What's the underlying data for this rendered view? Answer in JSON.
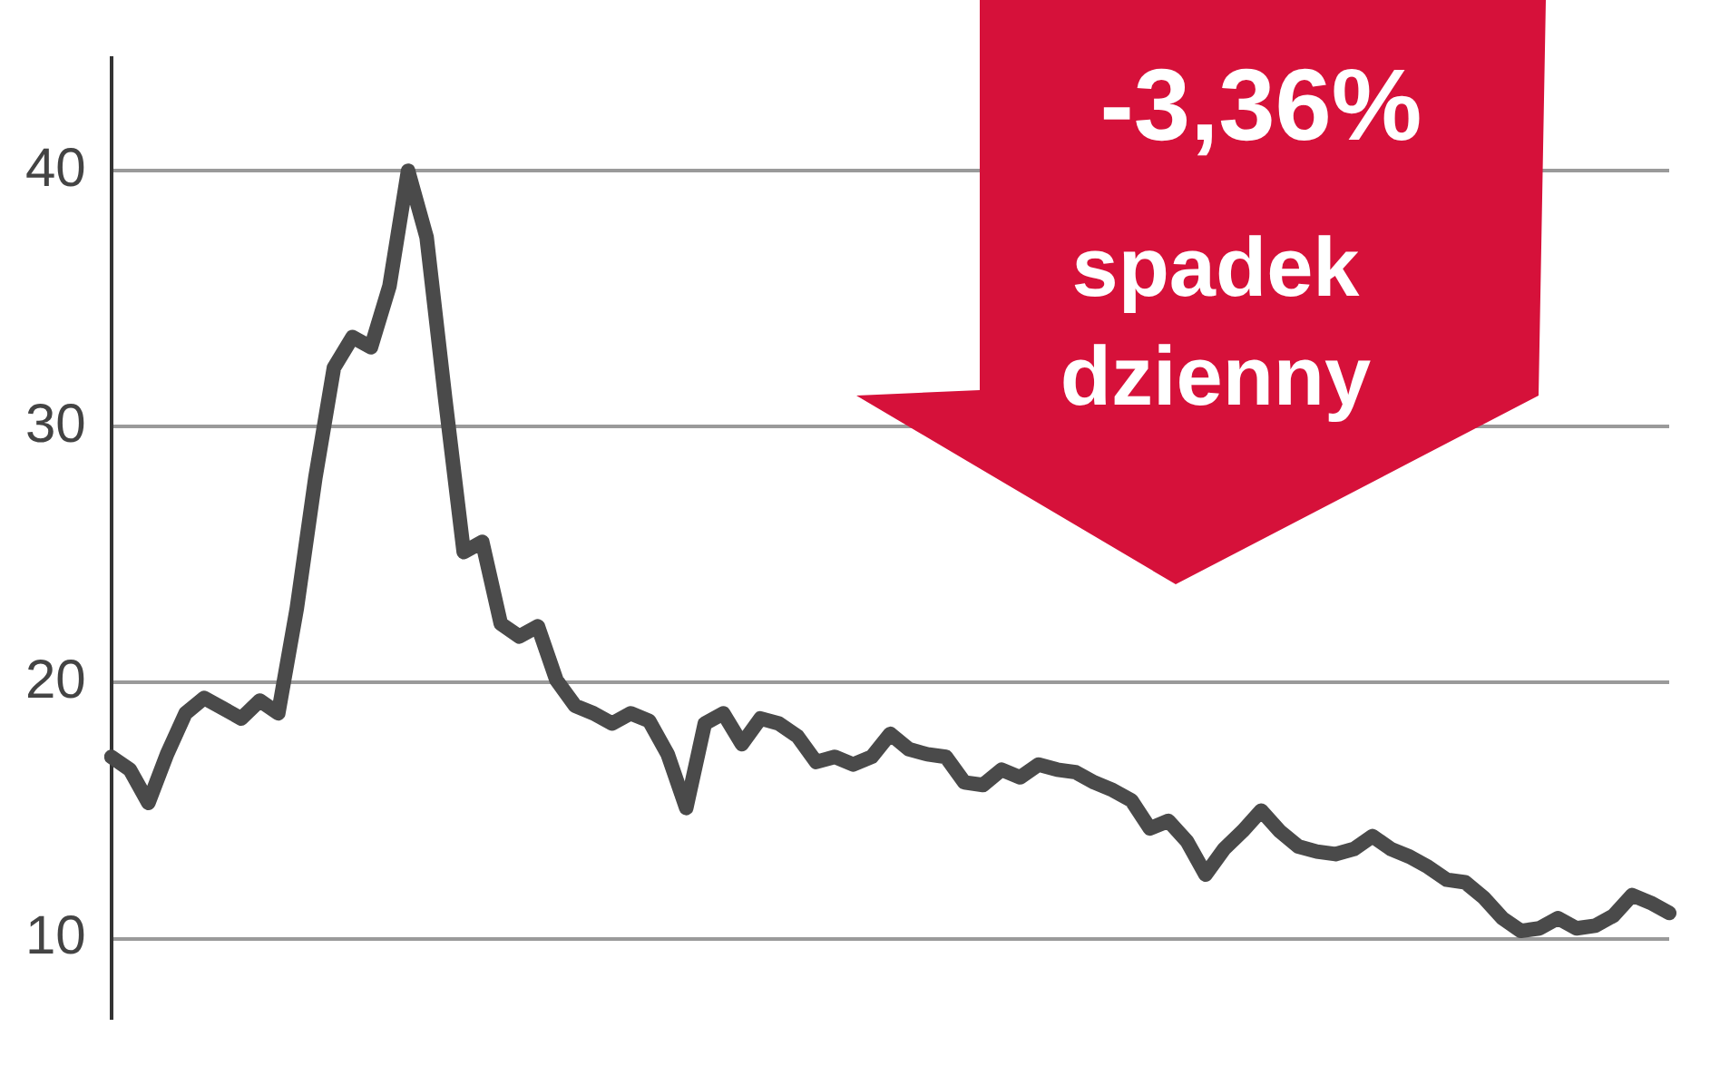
{
  "chart_data": {
    "type": "line",
    "annotations": [
      "-3,36%",
      "spadek dzienny"
    ],
    "categories": [
      null,
      null,
      null,
      null,
      null,
      null,
      null,
      null,
      null,
      null,
      null,
      null,
      null,
      null,
      null,
      null,
      null,
      null,
      null,
      null,
      null,
      null,
      null,
      null,
      null,
      null,
      null,
      null,
      null,
      null,
      null,
      null,
      null,
      null,
      null,
      null,
      null,
      null,
      null,
      null,
      null,
      null,
      null,
      null,
      null,
      null,
      null,
      null,
      null,
      null,
      null,
      null,
      null,
      null,
      null,
      null,
      null,
      null,
      null,
      null,
      null,
      null,
      null,
      null,
      null,
      null,
      null,
      null,
      null,
      null,
      null,
      null,
      null,
      null,
      null,
      null,
      null,
      null,
      null,
      null,
      null,
      null,
      null,
      null,
      null
    ],
    "series": [
      {
        "color": "#4a4a4a",
        "values": [
          17.1,
          16.6,
          15.3,
          17.2,
          18.8,
          19.4,
          19.0,
          18.6,
          19.3,
          18.8,
          22.9,
          28.0,
          32.3,
          33.5,
          33.1,
          35.5,
          40.0,
          37.4,
          31.1,
          25.1,
          25.5,
          22.3,
          21.8,
          22.2,
          20.1,
          19.1,
          18.8,
          18.4,
          18.8,
          18.5,
          17.2,
          15.1,
          18.4,
          18.8,
          17.6,
          18.6,
          18.4,
          17.9,
          16.9,
          17.1,
          16.8,
          17.1,
          18.0,
          17.4,
          17.2,
          17.1,
          16.1,
          16.0,
          16.6,
          16.3,
          16.8,
          16.6,
          16.5,
          16.1,
          15.8,
          15.4,
          14.3,
          14.6,
          13.8,
          12.5,
          13.5,
          14.2,
          15.0,
          14.2,
          13.6,
          13.4,
          13.3,
          13.5,
          14.0,
          13.5,
          13.2,
          12.8,
          12.3,
          12.2,
          11.6,
          10.8,
          10.3,
          10.4,
          10.8,
          10.4,
          10.5,
          10.9,
          11.7,
          11.4,
          11.0
        ]
      }
    ],
    "ylim": [
      6.9,
      44.4
    ],
    "yticks": [
      10,
      20,
      30,
      40
    ],
    "grid": "y",
    "legend": false,
    "marker": "none",
    "line_style": "solid"
  }
}
